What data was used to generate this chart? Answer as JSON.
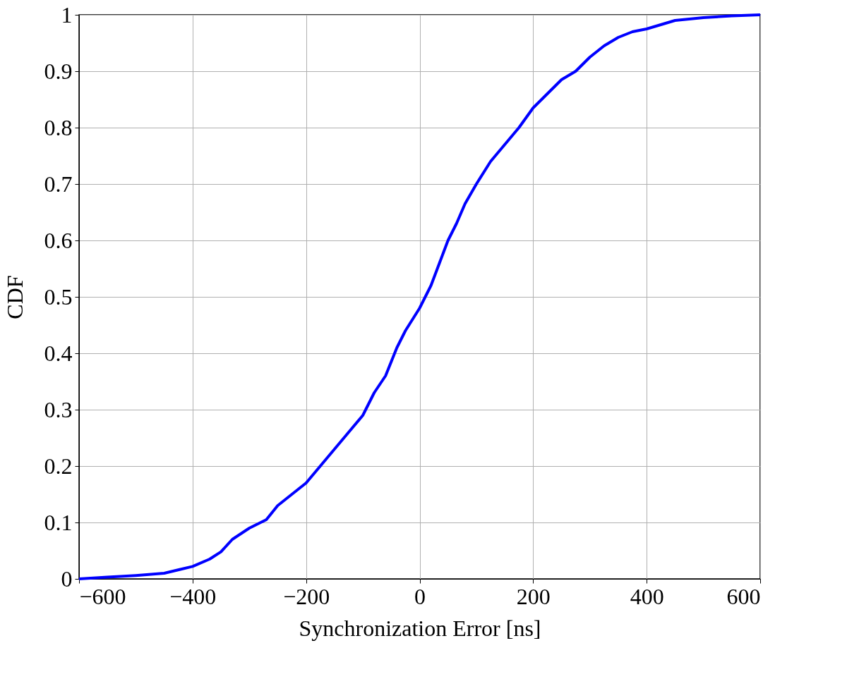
{
  "chart_data": {
    "type": "line",
    "xlabel": "Synchronization Error [ns]",
    "ylabel": "CDF",
    "xlim": [
      -600,
      600
    ],
    "xticks": [
      -600,
      -400,
      -200,
      0,
      200,
      400,
      600
    ],
    "ylim": [
      0,
      1
    ],
    "yticks": [
      0,
      0.1,
      0.2,
      0.3,
      0.4,
      0.5,
      0.6,
      0.7,
      0.8,
      0.9,
      1
    ],
    "grid": true,
    "marker": "none",
    "line_style": "solid",
    "series": [
      {
        "color": "#0000ff",
        "x": [
          -600,
          -550,
          -500,
          -450,
          -400,
          -370,
          -350,
          -330,
          -300,
          -270,
          -250,
          -225,
          -200,
          -175,
          -150,
          -125,
          -100,
          -80,
          -60,
          -40,
          -25,
          0,
          20,
          35,
          50,
          65,
          80,
          100,
          125,
          150,
          175,
          200,
          225,
          250,
          275,
          300,
          325,
          350,
          375,
          400,
          450,
          500,
          550,
          600
        ],
        "values": [
          0,
          0.003,
          0.006,
          0.01,
          0.022,
          0.035,
          0.048,
          0.07,
          0.09,
          0.105,
          0.13,
          0.15,
          0.17,
          0.2,
          0.23,
          0.26,
          0.29,
          0.33,
          0.36,
          0.41,
          0.44,
          0.48,
          0.52,
          0.56,
          0.6,
          0.63,
          0.665,
          0.7,
          0.74,
          0.77,
          0.8,
          0.835,
          0.86,
          0.885,
          0.9,
          0.925,
          0.945,
          0.96,
          0.97,
          0.975,
          0.99,
          0.995,
          0.998,
          1.0
        ]
      }
    ]
  }
}
